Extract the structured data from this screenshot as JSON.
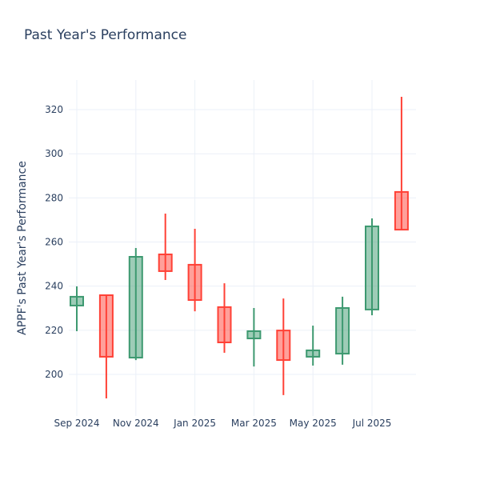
{
  "chart_data": {
    "type": "candlestick",
    "title": "Past Year's Performance",
    "xlabel": "",
    "ylabel": "APPF's Past Year's Performance",
    "ylim": [
      181,
      333.4
    ],
    "yticks": [
      200,
      220,
      240,
      260,
      280,
      300,
      320
    ],
    "xticks": [
      {
        "label": "Sep 2024",
        "index": 0
      },
      {
        "label": "Nov 2024",
        "index": 2
      },
      {
        "label": "Jan 2025",
        "index": 4
      },
      {
        "label": "Mar 2025",
        "index": 6
      },
      {
        "label": "May 2025",
        "index": 8
      },
      {
        "label": "Jul 2025",
        "index": 10
      }
    ],
    "grid": true,
    "increasing_color": "#3d9970",
    "decreasing_color": "#ff4136",
    "candles": [
      {
        "month": "Sep 2024",
        "open": 231.2,
        "high": 239.9,
        "low": 219.6,
        "close": 235.2
      },
      {
        "month": "Oct 2024",
        "open": 235.9,
        "high": 235.9,
        "low": 189.1,
        "close": 208.0
      },
      {
        "month": "Nov 2024",
        "open": 207.6,
        "high": 257.3,
        "low": 206.5,
        "close": 253.3
      },
      {
        "month": "Dec 2024",
        "open": 254.4,
        "high": 272.9,
        "low": 242.8,
        "close": 246.8
      },
      {
        "month": "Jan 2025",
        "open": 249.7,
        "high": 266.0,
        "low": 228.6,
        "close": 233.7
      },
      {
        "month": "Feb 2025",
        "open": 230.5,
        "high": 241.3,
        "low": 209.8,
        "close": 214.5
      },
      {
        "month": "Mar 2025",
        "open": 216.3,
        "high": 230.1,
        "low": 203.6,
        "close": 219.6
      },
      {
        "month": "Apr 2025",
        "open": 219.9,
        "high": 234.4,
        "low": 190.6,
        "close": 206.5
      },
      {
        "month": "May 2025",
        "open": 208.0,
        "high": 222.1,
        "low": 204.0,
        "close": 210.9
      },
      {
        "month": "Jun 2025",
        "open": 209.4,
        "high": 235.2,
        "low": 204.4,
        "close": 230.1
      },
      {
        "month": "Jul 2025",
        "open": 229.4,
        "high": 270.7,
        "low": 226.8,
        "close": 267.1
      },
      {
        "month": "Aug 2025",
        "open": 282.7,
        "high": 325.8,
        "low": 265.6,
        "close": 265.6
      }
    ]
  }
}
